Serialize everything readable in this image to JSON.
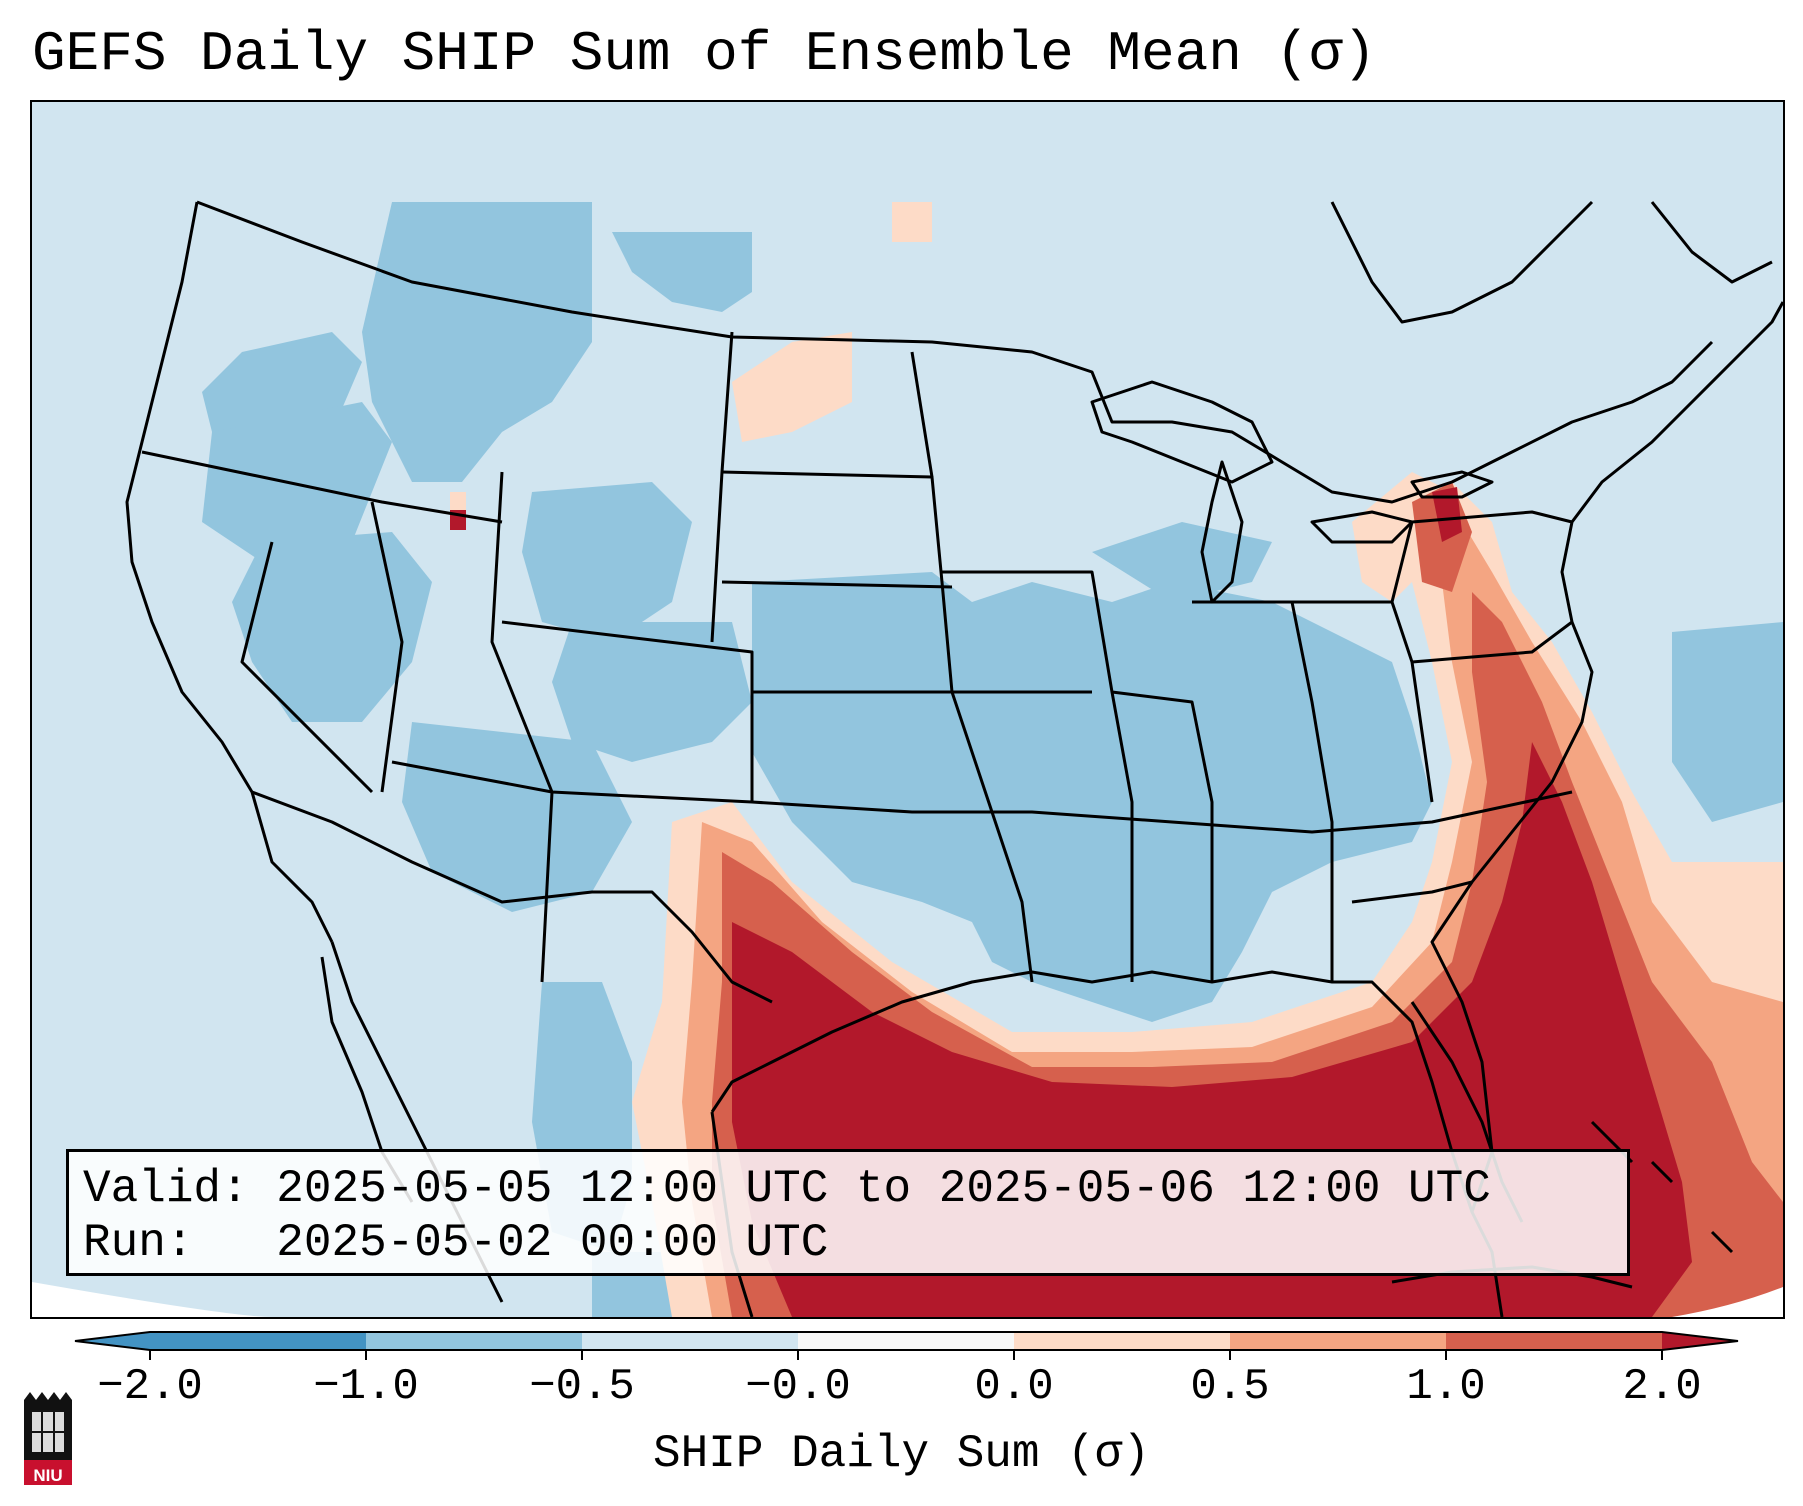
{
  "title": "GEFS Daily SHIP Sum of Ensemble Mean (σ)",
  "info": {
    "valid_label": "Valid:",
    "valid_value": "2025-05-05 12:00 UTC to 2025-05-06 12:00 UTC",
    "run_label": "Run:",
    "run_value": "2025-05-02 00:00 UTC"
  },
  "colorbar": {
    "title": "SHIP Daily Sum (σ)",
    "ticks": [
      "−2.0",
      "−1.0",
      "−0.5",
      "−0.0",
      "0.0",
      "0.5",
      "1.0",
      "2.0"
    ],
    "colors": [
      "#4393c3",
      "#92c5de",
      "#d1e5f0",
      "#f7f7f7",
      "#fddbc7",
      "#f4a582",
      "#d6604d",
      "#b2182b"
    ],
    "extend": "both"
  },
  "map": {
    "domain": "CONUS",
    "field_colors": {
      "very_low": "#4393c3",
      "low": "#92c5de",
      "slightly_low": "#d1e5f0",
      "slightly_high": "#fddbc7",
      "moderate_high": "#f4a582",
      "high": "#d6604d",
      "very_high": "#b2182b"
    }
  },
  "logo": {
    "text": "NIU"
  }
}
